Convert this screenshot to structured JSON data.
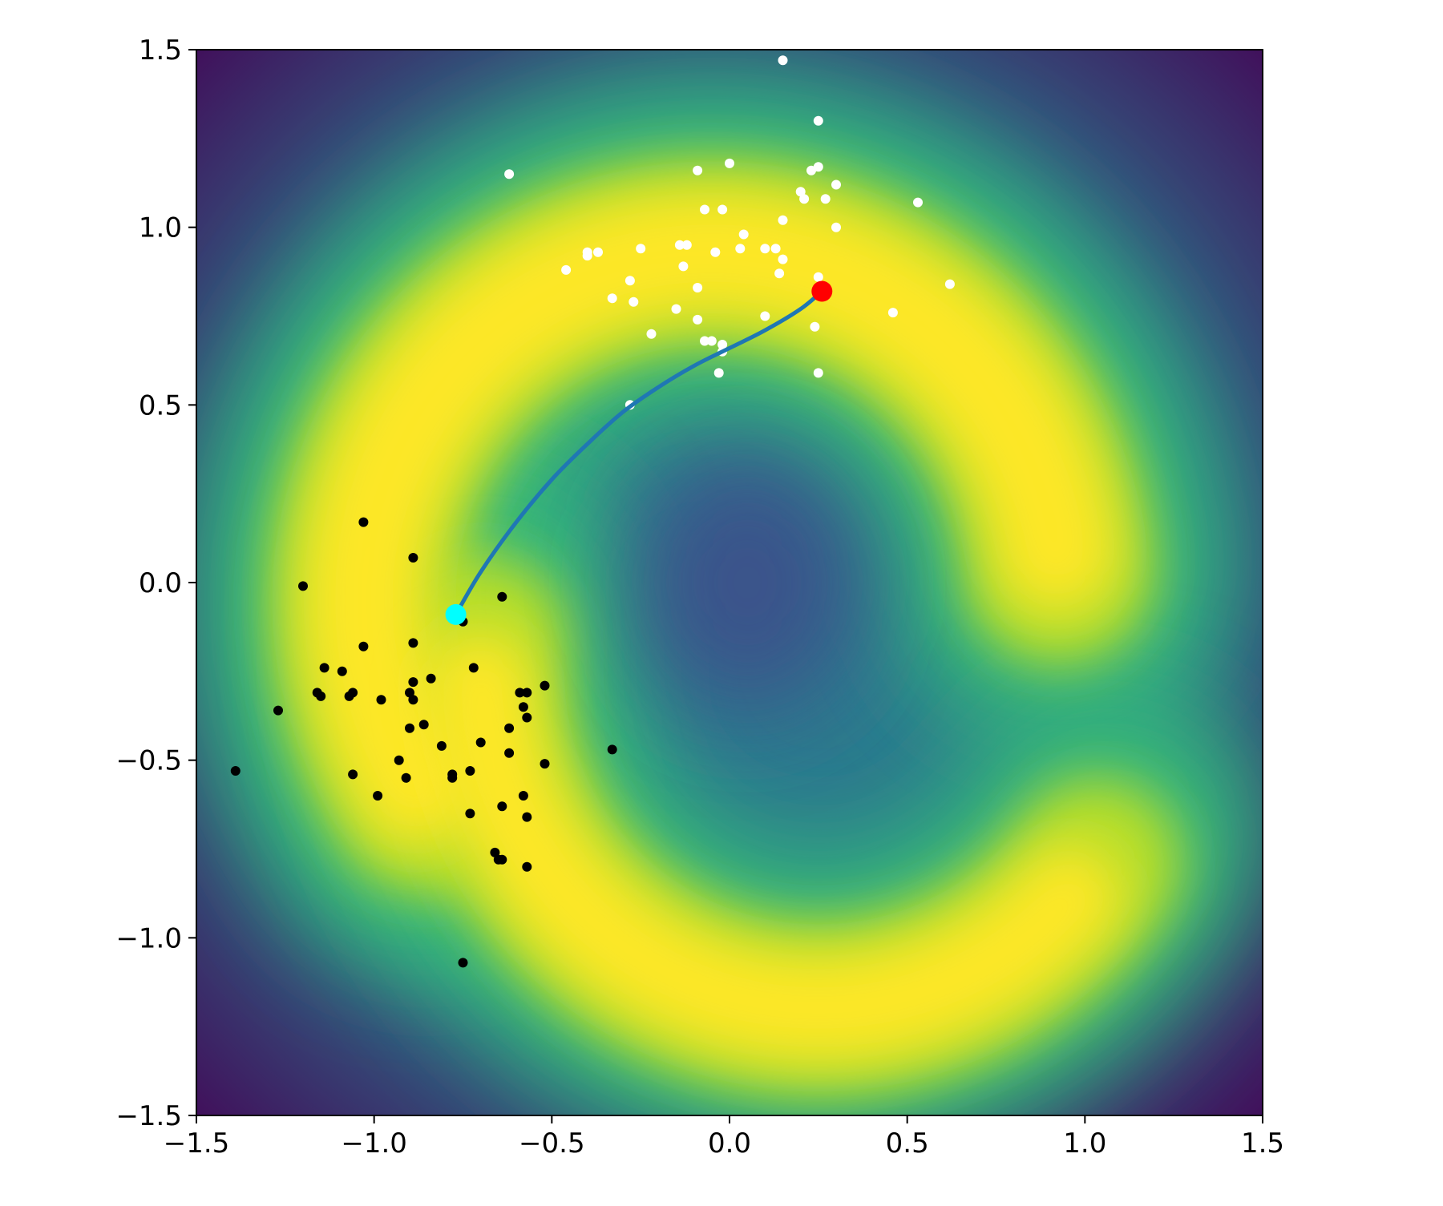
{
  "chart_data": {
    "type": "scatter",
    "title": "",
    "xlabel": "",
    "ylabel": "",
    "xlim": [
      -1.5,
      1.5
    ],
    "ylim": [
      -1.5,
      1.5
    ],
    "grid": false,
    "legend": "none",
    "colormap": "viridis",
    "background_field": "two-moons density: high (yellow) along an upper arc centred near (0.0, 0.0) radius 1 and a lower arc centred near (0.5, -0.25), low (purple) toward corners and centre",
    "xticks": [
      "−1.5",
      "−1.0",
      "−0.5",
      "0.0",
      "0.5",
      "1.0",
      "1.5"
    ],
    "yticks": [
      "−1.5",
      "−1.0",
      "−0.5",
      "0.0",
      "0.5",
      "1.0",
      "1.5"
    ],
    "xtick_values": [
      -1.5,
      -1.0,
      -0.5,
      0.0,
      0.5,
      1.0,
      1.5
    ],
    "ytick_values": [
      -1.5,
      -1.0,
      -0.5,
      0.0,
      0.5,
      1.0,
      1.5
    ],
    "series": [
      {
        "kind": "points",
        "color": "#ffffff",
        "points": [
          [
            0.15,
            1.47
          ],
          [
            0.25,
            1.3
          ],
          [
            -0.62,
            1.15
          ],
          [
            -0.09,
            1.16
          ],
          [
            0.0,
            1.18
          ],
          [
            0.23,
            1.16
          ],
          [
            0.25,
            1.17
          ],
          [
            0.3,
            1.12
          ],
          [
            0.2,
            1.1
          ],
          [
            0.21,
            1.08
          ],
          [
            0.27,
            1.08
          ],
          [
            0.53,
            1.07
          ],
          [
            -0.07,
            1.05
          ],
          [
            -0.02,
            1.05
          ],
          [
            0.15,
            1.02
          ],
          [
            0.3,
            1.0
          ],
          [
            0.04,
            0.98
          ],
          [
            -0.4,
            0.93
          ],
          [
            -0.4,
            0.92
          ],
          [
            -0.37,
            0.93
          ],
          [
            -0.25,
            0.94
          ],
          [
            -0.14,
            0.95
          ],
          [
            -0.12,
            0.95
          ],
          [
            -0.04,
            0.93
          ],
          [
            0.03,
            0.94
          ],
          [
            0.1,
            0.94
          ],
          [
            0.13,
            0.94
          ],
          [
            0.15,
            0.91
          ],
          [
            -0.13,
            0.89
          ],
          [
            -0.46,
            0.88
          ],
          [
            0.14,
            0.87
          ],
          [
            0.25,
            0.86
          ],
          [
            -0.28,
            0.85
          ],
          [
            -0.09,
            0.83
          ],
          [
            0.62,
            0.84
          ],
          [
            -0.33,
            0.8
          ],
          [
            -0.27,
            0.79
          ],
          [
            -0.15,
            0.77
          ],
          [
            0.46,
            0.76
          ],
          [
            -0.09,
            0.74
          ],
          [
            0.24,
            0.72
          ],
          [
            -0.22,
            0.7
          ],
          [
            -0.07,
            0.68
          ],
          [
            -0.05,
            0.68
          ],
          [
            -0.02,
            0.65
          ],
          [
            -0.02,
            0.67
          ],
          [
            0.1,
            0.75
          ],
          [
            -0.03,
            0.59
          ],
          [
            0.25,
            0.59
          ],
          [
            -0.28,
            0.5
          ]
        ]
      },
      {
        "kind": "points",
        "color": "#000000",
        "points": [
          [
            -1.03,
            0.17
          ],
          [
            -0.89,
            0.07
          ],
          [
            -1.2,
            -0.01
          ],
          [
            -0.64,
            -0.04
          ],
          [
            -0.75,
            -0.11
          ],
          [
            -1.03,
            -0.18
          ],
          [
            -0.89,
            -0.17
          ],
          [
            -0.72,
            -0.24
          ],
          [
            -1.14,
            -0.24
          ],
          [
            -1.09,
            -0.25
          ],
          [
            -0.84,
            -0.27
          ],
          [
            -0.89,
            -0.28
          ],
          [
            -0.52,
            -0.29
          ],
          [
            -1.16,
            -0.31
          ],
          [
            -1.15,
            -0.32
          ],
          [
            -1.06,
            -0.31
          ],
          [
            -1.07,
            -0.32
          ],
          [
            -0.9,
            -0.31
          ],
          [
            -0.59,
            -0.31
          ],
          [
            -0.57,
            -0.31
          ],
          [
            -0.98,
            -0.33
          ],
          [
            -0.89,
            -0.33
          ],
          [
            -0.58,
            -0.35
          ],
          [
            -1.27,
            -0.36
          ],
          [
            -0.57,
            -0.38
          ],
          [
            -0.86,
            -0.4
          ],
          [
            -0.9,
            -0.41
          ],
          [
            -0.62,
            -0.41
          ],
          [
            -0.81,
            -0.46
          ],
          [
            -0.7,
            -0.45
          ],
          [
            -0.33,
            -0.47
          ],
          [
            -0.62,
            -0.48
          ],
          [
            -0.93,
            -0.5
          ],
          [
            -0.52,
            -0.51
          ],
          [
            -1.39,
            -0.53
          ],
          [
            -1.06,
            -0.54
          ],
          [
            -0.91,
            -0.55
          ],
          [
            -0.78,
            -0.54
          ],
          [
            -0.73,
            -0.53
          ],
          [
            -0.78,
            -0.55
          ],
          [
            -0.99,
            -0.6
          ],
          [
            -0.58,
            -0.6
          ],
          [
            -0.64,
            -0.63
          ],
          [
            -0.73,
            -0.65
          ],
          [
            -0.57,
            -0.66
          ],
          [
            -0.66,
            -0.76
          ],
          [
            -0.65,
            -0.78
          ],
          [
            -0.64,
            -0.78
          ],
          [
            -0.57,
            -0.8
          ],
          [
            -0.75,
            -1.07
          ]
        ]
      },
      {
        "kind": "curve",
        "color": "#1f77b4",
        "points": [
          [
            -0.77,
            -0.09
          ],
          [
            -0.7,
            0.03
          ],
          [
            -0.6,
            0.17
          ],
          [
            -0.5,
            0.29
          ],
          [
            -0.4,
            0.39
          ],
          [
            -0.3,
            0.48
          ],
          [
            -0.2,
            0.55
          ],
          [
            -0.1,
            0.61
          ],
          [
            0.0,
            0.66
          ],
          [
            0.1,
            0.71
          ],
          [
            0.2,
            0.77
          ],
          [
            0.26,
            0.82
          ]
        ]
      },
      {
        "kind": "marker",
        "color": "#00ffff",
        "points": [
          [
            -0.77,
            -0.09
          ]
        ]
      },
      {
        "kind": "marker",
        "color": "#ff0000",
        "points": [
          [
            0.26,
            0.82
          ]
        ]
      }
    ]
  }
}
